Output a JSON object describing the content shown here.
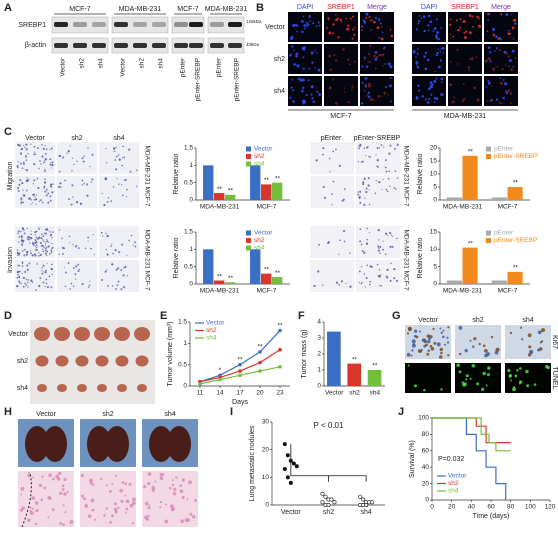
{
  "panel_labels": [
    "A",
    "B",
    "C",
    "D",
    "E",
    "F",
    "G",
    "H",
    "I",
    "J"
  ],
  "A": {
    "cell_lines": [
      "MCF-7",
      "MDA-MB-231",
      "MCF-7",
      "MDA-MB-231"
    ],
    "proteins": [
      "SREBP1",
      "β-actin"
    ],
    "markers": [
      "125kDa",
      "43kDa"
    ],
    "lanes": [
      "Vector",
      "sh2",
      "sh4",
      "Vector",
      "sh2",
      "sh4",
      "pEnter",
      "pEnter-SREBP",
      "pEnter",
      "pEnter-SREBP"
    ]
  },
  "B": {
    "channels": [
      "DAPI",
      "SREBP1",
      "Merge"
    ],
    "rows": [
      "Vector",
      "sh2",
      "sh4"
    ],
    "cell_lines": [
      "MCF-7",
      "MDA-MB-231"
    ]
  },
  "C": {
    "columns": [
      "Vector",
      "sh2",
      "sh4"
    ],
    "columns_2": [
      "pEnter",
      "pEnter-SREBP"
    ],
    "rows": [
      "Migration",
      "Invasion"
    ],
    "side": "MDA-MB-231 MCF-7"
  },
  "D": {
    "rows": [
      "Vector",
      "sh2",
      "sh4"
    ]
  },
  "G": {
    "columns": [
      "Vector",
      "sh2",
      "sh4"
    ],
    "rows": [
      "Ki67",
      "TUNEL"
    ]
  },
  "H": {
    "columns": [
      "Vector",
      "sh2",
      "sh4"
    ]
  },
  "chart_data": [
    {
      "type": "bar",
      "ylabel": "Relative ratio",
      "categories": [
        "MDA-MB-231",
        "MCF-7"
      ],
      "series": [
        {
          "name": "Vector",
          "color": "#3b6fc6",
          "values": [
            1,
            1
          ]
        },
        {
          "name": "sh2",
          "color": "#d8352c",
          "values": [
            0.2,
            0.45
          ]
        },
        {
          "name": "sh4",
          "color": "#72bf3c",
          "values": [
            0.15,
            0.5
          ]
        }
      ],
      "ylim": [
        0,
        1.5
      ],
      "yticks": [
        0,
        0.5,
        1,
        1.5
      ],
      "annotations": [
        "**",
        "**",
        "**",
        "**"
      ]
    },
    {
      "type": "bar",
      "ylabel": "Relative ratio",
      "categories": [
        "MDA-MB-231",
        "MCF-7"
      ],
      "series": [
        {
          "name": "Vector",
          "color": "#3b6fc6",
          "values": [
            1,
            1
          ]
        },
        {
          "name": "sh2",
          "color": "#d8352c",
          "values": [
            0.1,
            0.3
          ]
        },
        {
          "name": "sh4",
          "color": "#72bf3c",
          "values": [
            0.05,
            0.2
          ]
        }
      ],
      "ylim": [
        0,
        1.5
      ],
      "yticks": [
        0,
        0.5,
        1,
        1.5
      ],
      "annotations": [
        "**",
        "**",
        "**",
        "**"
      ]
    },
    {
      "type": "bar",
      "ylabel": "Relative ratio",
      "categories": [
        "MDA-MB-231",
        "MCF-7"
      ],
      "series": [
        {
          "name": "pEnter",
          "color": "#a9a9a9",
          "values": [
            1,
            1
          ]
        },
        {
          "name": "pEnter-SREBP",
          "color": "#f08a1c",
          "values": [
            17,
            5
          ]
        }
      ],
      "ylim": [
        0,
        20
      ],
      "yticks": [
        0,
        5,
        10,
        15,
        20
      ],
      "annotations": [
        "**",
        "**"
      ]
    },
    {
      "type": "bar",
      "ylabel": "Relative ratio",
      "categories": [
        "MDA-MB-231",
        "MCF-7"
      ],
      "series": [
        {
          "name": "pEnter",
          "color": "#a9a9a9",
          "values": [
            1,
            1
          ]
        },
        {
          "name": "pEnter-SREBP",
          "color": "#f08a1c",
          "values": [
            10.5,
            3.5
          ]
        }
      ],
      "ylim": [
        0,
        15
      ],
      "yticks": [
        0,
        5,
        10,
        15
      ],
      "annotations": [
        "**",
        "**"
      ]
    },
    {
      "type": "line",
      "ylabel": "Tumor volume (mm³)",
      "xlabel": "Days",
      "x": [
        11,
        14,
        17,
        20,
        23
      ],
      "xlim": [
        9.5,
        24.5
      ],
      "xticks": [
        11,
        14,
        17,
        20,
        23
      ],
      "series": [
        {
          "name": "Vector",
          "color": "#3b6fc6",
          "values": [
            0.1,
            0.25,
            0.5,
            0.8,
            1.3
          ]
        },
        {
          "name": "sh2",
          "color": "#d8352c",
          "values": [
            0.1,
            0.2,
            0.35,
            0.55,
            0.85
          ]
        },
        {
          "name": "sh4",
          "color": "#72bf3c",
          "values": [
            0.05,
            0.15,
            0.25,
            0.35,
            0.45
          ]
        }
      ],
      "ylim": [
        0,
        1.5
      ],
      "yticks": [
        0,
        0.5,
        1,
        1.5
      ],
      "markers": true,
      "legend": "upper left",
      "annotations": [
        "*",
        "**",
        "**",
        "**"
      ]
    },
    {
      "type": "bar",
      "ylabel": "Tumor mass (g)",
      "categories": [
        "Vector",
        "sh2",
        "sh4"
      ],
      "values": [
        3.4,
        1.4,
        1.0
      ],
      "colors": [
        "#3b6fc6",
        "#d8352c",
        "#72bf3c"
      ],
      "ylim": [
        0,
        4
      ],
      "yticks": [
        0,
        1,
        2,
        3,
        4
      ],
      "annotations": [
        "**",
        "**"
      ]
    },
    {
      "type": "strip",
      "ylabel": "Lung metastatic nodules",
      "categories": [
        "Vector",
        "sh2",
        "sh4"
      ],
      "values": [
        [
          22,
          18,
          16,
          15,
          14,
          13,
          10,
          8
        ],
        [
          4,
          3,
          2,
          2,
          1,
          1,
          0,
          0
        ],
        [
          3,
          2,
          1,
          1,
          1,
          0,
          0,
          0
        ]
      ],
      "ylim": [
        0,
        30
      ],
      "yticks": [
        0,
        10,
        20,
        30
      ],
      "annotation": "P < 0.01"
    },
    {
      "type": "line",
      "step": true,
      "ylabel": "Survival (%)",
      "xlabel": "Time (days)",
      "xlim": [
        0,
        120
      ],
      "xticks": [
        0,
        20,
        40,
        60,
        80,
        100,
        120
      ],
      "series": [
        {
          "name": "Vector",
          "color": "#3b6fc6",
          "x": [
            0,
            35,
            45,
            55,
            65,
            75
          ],
          "values": [
            100,
            80,
            60,
            40,
            20,
            0
          ]
        },
        {
          "name": "sh2",
          "color": "#d8352c",
          "x": [
            0,
            45,
            55,
            80
          ],
          "values": [
            100,
            90,
            70,
            70
          ]
        },
        {
          "name": "sh4",
          "color": "#72bf3c",
          "x": [
            0,
            50,
            58,
            65,
            80
          ],
          "values": [
            100,
            80,
            70,
            60,
            60
          ]
        }
      ],
      "ylim": [
        0,
        100
      ],
      "yticks": [
        0,
        20,
        40,
        60,
        80,
        100
      ],
      "legend": "lower left",
      "annotation": "P=0.032"
    }
  ]
}
